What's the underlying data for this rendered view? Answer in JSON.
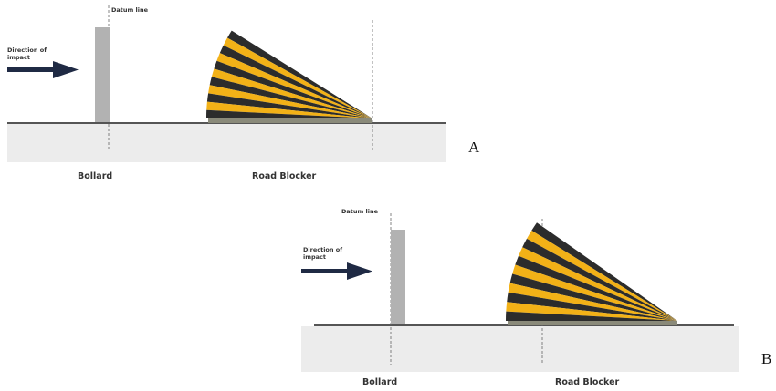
{
  "colors": {
    "arrow": "#1f2a44",
    "bollard": "#b2b2b2",
    "stripe_yellow": "#f2b117",
    "stripe_dark": "#2c2c2c",
    "ground": "#ececec",
    "road_line": "#555555"
  },
  "panels": [
    {
      "letter": "A",
      "datum_label": "Datum line",
      "impact_label": "Direction of impact",
      "bollard_label": "Bollard",
      "blocker_label": "Road Blocker"
    },
    {
      "letter": "B",
      "datum_label": "Datum line",
      "impact_label": "Direction of impact",
      "bollard_label": "Bollard",
      "blocker_label": "Road Blocker"
    }
  ]
}
